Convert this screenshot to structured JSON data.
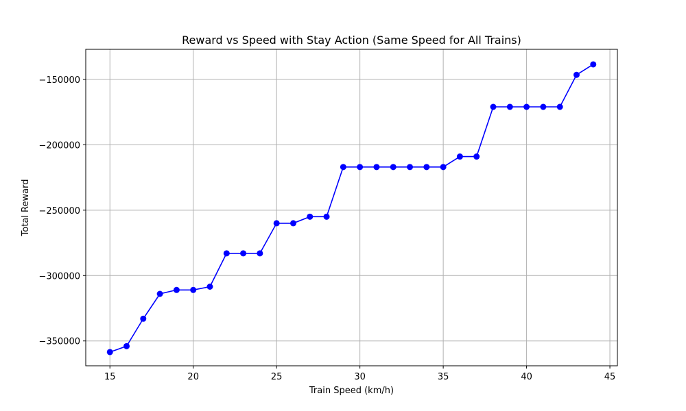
{
  "chart_data": {
    "type": "line",
    "title": "Reward vs Speed with Stay Action (Same Speed for All Trains)",
    "xlabel": "Train Speed (km/h)",
    "ylabel": "Total Reward",
    "xlim": [
      13.55,
      45.45
    ],
    "ylim": [
      -369000,
      -127000
    ],
    "xticks": [
      15,
      20,
      25,
      30,
      35,
      40,
      45
    ],
    "yticks": [
      -350000,
      -300000,
      -250000,
      -200000,
      -150000
    ],
    "ytick_labels": [
      "−350000",
      "−300000",
      "−250000",
      "−200000",
      "−150000"
    ],
    "grid": true,
    "series": [
      {
        "color": "#0000ff",
        "marker": "circle",
        "x": [
          15,
          16,
          17,
          18,
          19,
          20,
          21,
          22,
          23,
          24,
          25,
          26,
          27,
          28,
          29,
          30,
          31,
          32,
          33,
          34,
          35,
          36,
          37,
          38,
          39,
          40,
          41,
          42,
          43,
          44
        ],
        "y": [
          -358500,
          -354000,
          -333000,
          -314000,
          -311000,
          -311000,
          -308500,
          -283000,
          -283000,
          -283000,
          -260000,
          -260000,
          -255000,
          -255000,
          -217000,
          -217000,
          -217000,
          -217000,
          -217000,
          -217000,
          -217000,
          -209000,
          -209000,
          -171000,
          -171000,
          -171000,
          -171000,
          -171000,
          -146500,
          -138500
        ]
      }
    ]
  }
}
